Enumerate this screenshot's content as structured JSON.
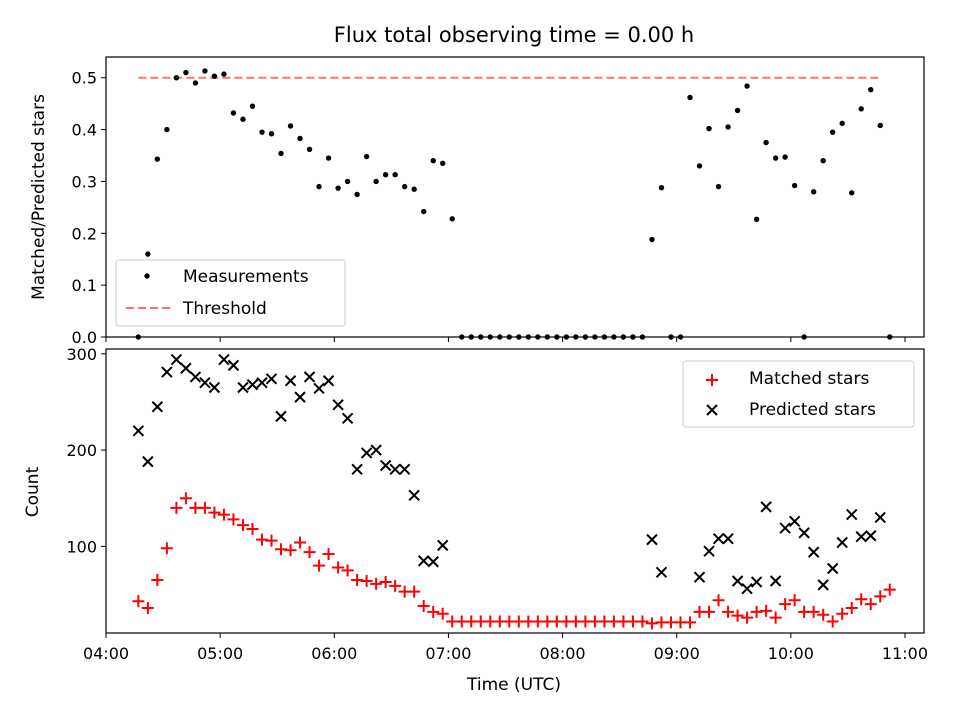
{
  "chart_data": [
    {
      "type": "scatter",
      "title": "Flux total observing time = 0.00 h",
      "xlabel": "",
      "ylabel": "Matched/Predicted stars",
      "xlim": [
        "04:00",
        "11:10"
      ],
      "ylim": [
        0,
        0.54
      ],
      "yticks": [
        "0.0",
        "0.1",
        "0.2",
        "0.3",
        "0.4",
        "0.5"
      ],
      "grid": false,
      "legend": "lower-left",
      "series": [
        {
          "name": "Measurements",
          "marker": "dot",
          "color": "#000000",
          "x": [
            "04:17",
            "04:22",
            "04:27",
            "04:32",
            "04:37",
            "04:42",
            "04:47",
            "04:52",
            "04:57",
            "05:02",
            "05:07",
            "05:12",
            "05:17",
            "05:22",
            "05:27",
            "05:32",
            "05:37",
            "05:42",
            "05:47",
            "05:52",
            "05:57",
            "06:02",
            "06:07",
            "06:12",
            "06:17",
            "06:22",
            "06:27",
            "06:32",
            "06:37",
            "06:42",
            "06:47",
            "06:52",
            "06:57",
            "07:02",
            "07:07",
            "07:12",
            "07:17",
            "07:22",
            "07:27",
            "07:32",
            "07:37",
            "07:42",
            "07:47",
            "07:52",
            "07:57",
            "08:02",
            "08:07",
            "08:12",
            "08:17",
            "08:22",
            "08:27",
            "08:32",
            "08:37",
            "08:42",
            "08:47",
            "08:52",
            "08:57",
            "09:02",
            "09:07",
            "09:12",
            "09:17",
            "09:22",
            "09:27",
            "09:32",
            "09:37",
            "09:42",
            "09:47",
            "09:52",
            "09:57",
            "10:02",
            "10:07",
            "10:12",
            "10:17",
            "10:22",
            "10:27",
            "10:32",
            "10:37",
            "10:42",
            "10:47",
            "10:52"
          ],
          "y": [
            0.0,
            0.16,
            0.343,
            0.4,
            0.5,
            0.51,
            0.49,
            0.513,
            0.503,
            0.507,
            0.432,
            0.42,
            0.445,
            0.395,
            0.392,
            0.354,
            0.407,
            0.383,
            0.362,
            0.29,
            0.345,
            0.287,
            0.3,
            0.275,
            0.348,
            0.3,
            0.313,
            0.313,
            0.29,
            0.285,
            0.242,
            0.34,
            0.335,
            0.228,
            0.0,
            0.0,
            0.0,
            0.0,
            0.0,
            0.0,
            0.0,
            0.0,
            0.0,
            0.0,
            0.0,
            0.0,
            0.0,
            0.0,
            0.0,
            0.0,
            0.0,
            0.0,
            0.0,
            0.0,
            0.188,
            0.288,
            0.0,
            0.0,
            0.462,
            0.33,
            0.402,
            0.29,
            0.405,
            0.437,
            0.484,
            0.227,
            0.375,
            0.345,
            0.347,
            0.292,
            0.0,
            0.28,
            0.34,
            0.395,
            0.412,
            0.278,
            0.44,
            0.477,
            0.408,
            0.0
          ]
        },
        {
          "name": "Threshold",
          "style": "dashed",
          "color": "#ff7070",
          "x": [
            "04:17",
            "10:47"
          ],
          "y": [
            0.5,
            0.5
          ]
        }
      ]
    },
    {
      "type": "scatter",
      "xlabel": "Time (UTC)",
      "ylabel": "Count",
      "xlim": [
        "04:00",
        "11:10"
      ],
      "ylim": [
        10,
        305
      ],
      "yticks": [
        "100",
        "200",
        "300"
      ],
      "xticks": [
        "04:00",
        "05:00",
        "06:00",
        "07:00",
        "08:00",
        "09:00",
        "10:00",
        "11:00"
      ],
      "grid": false,
      "legend": "top-right",
      "series": [
        {
          "name": "Matched stars",
          "marker": "plus",
          "color": "#ff0000",
          "x": [
            "04:17",
            "04:22",
            "04:27",
            "04:32",
            "04:37",
            "04:42",
            "04:47",
            "04:52",
            "04:57",
            "05:02",
            "05:07",
            "05:12",
            "05:17",
            "05:22",
            "05:27",
            "05:32",
            "05:37",
            "05:42",
            "05:47",
            "05:52",
            "05:57",
            "06:02",
            "06:07",
            "06:12",
            "06:17",
            "06:22",
            "06:27",
            "06:32",
            "06:37",
            "06:42",
            "06:47",
            "06:52",
            "06:57",
            "07:02",
            "07:07",
            "07:12",
            "07:17",
            "07:22",
            "07:27",
            "07:32",
            "07:37",
            "07:42",
            "07:47",
            "07:52",
            "07:57",
            "08:02",
            "08:07",
            "08:12",
            "08:17",
            "08:22",
            "08:27",
            "08:32",
            "08:37",
            "08:42",
            "08:47",
            "08:52",
            "08:57",
            "09:02",
            "09:07",
            "09:12",
            "09:17",
            "09:22",
            "09:27",
            "09:32",
            "09:37",
            "09:42",
            "09:47",
            "09:52",
            "09:57",
            "10:02",
            "10:07",
            "10:12",
            "10:17",
            "10:22",
            "10:27",
            "10:32",
            "10:37",
            "10:42",
            "10:47",
            "10:52"
          ],
          "y": [
            43,
            36,
            65,
            98,
            140,
            150,
            140,
            140,
            135,
            133,
            128,
            122,
            118,
            107,
            106,
            97,
            96,
            104,
            94,
            80,
            92,
            78,
            75,
            65,
            64,
            61,
            63,
            59,
            53,
            53,
            38,
            32,
            30,
            22,
            22,
            22,
            22,
            22,
            22,
            22,
            22,
            22,
            22,
            22,
            22,
            22,
            22,
            22,
            22,
            22,
            22,
            22,
            22,
            22,
            20,
            21,
            21,
            21,
            21,
            32,
            32,
            44,
            32,
            28,
            26,
            32,
            33,
            26,
            40,
            44,
            32,
            32,
            29,
            22,
            30,
            36,
            45,
            40,
            48,
            55
          ]
        },
        {
          "name": "Predicted stars",
          "marker": "x",
          "color": "#000000",
          "x": [
            "04:17",
            "04:22",
            "04:27",
            "04:32",
            "04:37",
            "04:42",
            "04:47",
            "04:52",
            "04:57",
            "05:02",
            "05:07",
            "05:12",
            "05:17",
            "05:22",
            "05:27",
            "05:32",
            "05:37",
            "05:42",
            "05:47",
            "05:52",
            "05:57",
            "06:02",
            "06:07",
            "06:12",
            "06:17",
            "06:22",
            "06:27",
            "06:32",
            "06:37",
            "06:42",
            "06:47",
            "06:52",
            "06:57",
            "08:47",
            "08:52",
            "09:12",
            "09:17",
            "09:22",
            "09:27",
            "09:32",
            "09:37",
            "09:42",
            "09:47",
            "09:52",
            "09:57",
            "10:02",
            "10:07",
            "10:12",
            "10:17",
            "10:22",
            "10:27",
            "10:32",
            "10:37",
            "10:42",
            "10:47"
          ],
          "y": [
            220,
            188,
            245,
            281,
            294,
            285,
            276,
            270,
            265,
            294,
            288,
            265,
            268,
            270,
            274,
            235,
            272,
            255,
            276,
            264,
            272,
            247,
            233,
            180,
            197,
            200,
            184,
            180,
            180,
            153,
            85,
            84,
            101,
            107,
            73,
            68,
            95,
            108,
            108,
            64,
            56,
            63,
            141,
            64,
            119,
            126,
            114,
            94,
            60,
            77,
            104,
            133,
            110,
            111,
            130
          ]
        }
      ]
    }
  ]
}
